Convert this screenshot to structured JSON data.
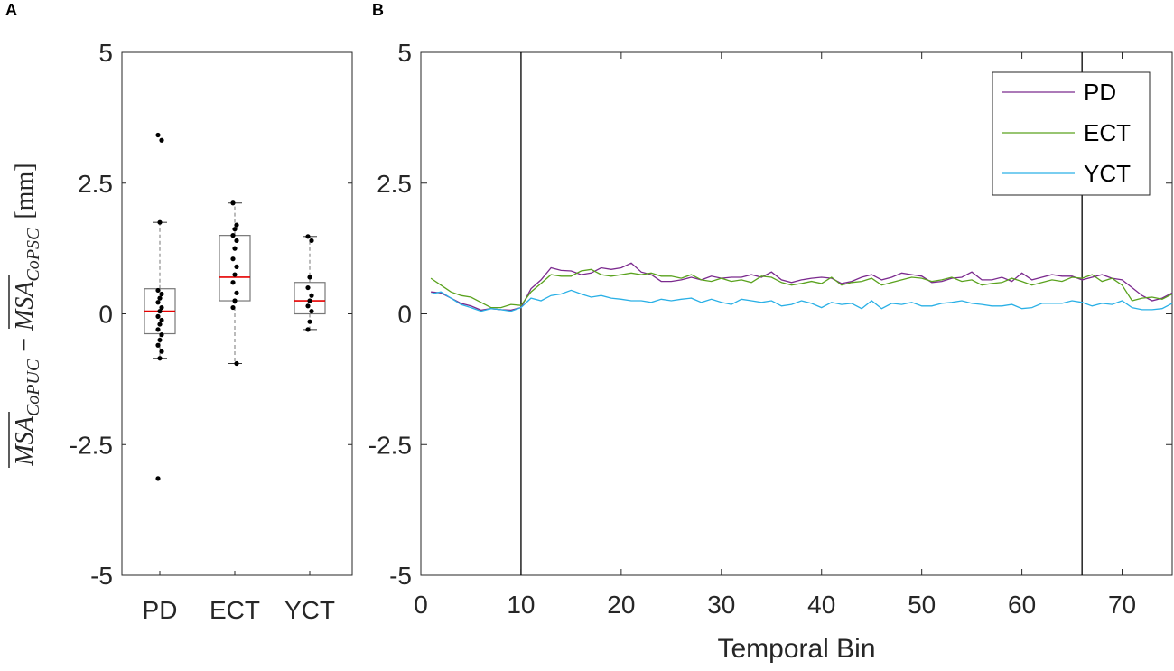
{
  "panels": {
    "a": "A",
    "b": "B"
  },
  "chart_data": [
    {
      "type": "box",
      "ylabel": "MSA_CoPUC − MSA_CoPSC [mm]",
      "ylabel_parts": {
        "lhs": "MSA",
        "lhs_sub": "CoPUC",
        "op": "−",
        "rhs": "MSA",
        "rhs_sub": "CoPSC",
        "unit": "[mm]"
      },
      "ylim": [
        -5,
        5
      ],
      "yticks": [
        -5,
        -2.5,
        0,
        2.5,
        5
      ],
      "ytick_labels": [
        "-5",
        "-2.5",
        "0",
        "2.5",
        "5"
      ],
      "categories": [
        "PD",
        "ECT",
        "YCT"
      ],
      "boxes": [
        {
          "name": "PD",
          "q1": -0.38,
          "median": 0.05,
          "q3": 0.48,
          "whisker_low": -0.85,
          "whisker_high": 1.75,
          "points": [
            3.42,
            3.32,
            1.75,
            0.45,
            0.38,
            0.3,
            0.22,
            0.12,
            0.05,
            -0.05,
            -0.12,
            -0.2,
            -0.3,
            -0.4,
            -0.5,
            -0.6,
            -0.72,
            -0.85,
            -3.15
          ]
        },
        {
          "name": "ECT",
          "q1": 0.25,
          "median": 0.7,
          "q3": 1.5,
          "whisker_low": -0.95,
          "whisker_high": 2.12,
          "points": [
            2.12,
            1.7,
            1.62,
            1.5,
            1.4,
            1.25,
            1.05,
            0.9,
            0.75,
            0.6,
            0.4,
            0.25,
            0.12,
            -0.95
          ]
        },
        {
          "name": "YCT",
          "q1": 0.0,
          "median": 0.25,
          "q3": 0.6,
          "whisker_low": -0.3,
          "whisker_high": 1.48,
          "points": [
            1.48,
            1.4,
            0.7,
            0.5,
            0.35,
            0.25,
            0.15,
            0.05,
            -0.15,
            -0.3
          ]
        }
      ],
      "colors": {
        "box": "#777777",
        "median": "#e60000",
        "points": "#000000"
      }
    },
    {
      "type": "line",
      "xlabel": "Temporal Bin",
      "xlim": [
        0,
        75
      ],
      "ylim": [
        -5,
        5
      ],
      "xticks": [
        0,
        10,
        20,
        30,
        40,
        50,
        60,
        70
      ],
      "yticks": [
        -5,
        -2.5,
        0,
        2.5,
        5
      ],
      "ytick_labels": [
        "-5",
        "-2.5",
        "0",
        "2.5",
        "5"
      ],
      "vlines": [
        10,
        66
      ],
      "legend_position": "top-right",
      "series": [
        {
          "name": "PD",
          "color": "#7b2a8e",
          "values": [
            0.42,
            0.4,
            0.3,
            0.2,
            0.15,
            0.07,
            0.1,
            0.08,
            0.07,
            0.12,
            0.48,
            0.65,
            0.88,
            0.83,
            0.82,
            0.75,
            0.78,
            0.88,
            0.85,
            0.88,
            0.97,
            0.8,
            0.75,
            0.62,
            0.62,
            0.65,
            0.7,
            0.65,
            0.72,
            0.68,
            0.7,
            0.7,
            0.75,
            0.7,
            0.8,
            0.65,
            0.6,
            0.65,
            0.68,
            0.7,
            0.68,
            0.58,
            0.62,
            0.7,
            0.75,
            0.65,
            0.7,
            0.78,
            0.75,
            0.72,
            0.6,
            0.62,
            0.68,
            0.7,
            0.8,
            0.65,
            0.65,
            0.7,
            0.62,
            0.78,
            0.65,
            0.7,
            0.75,
            0.72,
            0.72,
            0.65,
            0.7,
            0.75,
            0.68,
            0.65,
            0.5,
            0.35,
            0.25,
            0.3,
            0.4
          ]
        },
        {
          "name": "ECT",
          "color": "#5aa21e",
          "values": [
            0.68,
            0.55,
            0.42,
            0.35,
            0.32,
            0.22,
            0.12,
            0.12,
            0.18,
            0.16,
            0.42,
            0.58,
            0.75,
            0.72,
            0.72,
            0.82,
            0.85,
            0.75,
            0.72,
            0.75,
            0.78,
            0.75,
            0.78,
            0.72,
            0.72,
            0.68,
            0.75,
            0.65,
            0.62,
            0.68,
            0.62,
            0.65,
            0.6,
            0.72,
            0.7,
            0.6,
            0.55,
            0.58,
            0.62,
            0.58,
            0.7,
            0.55,
            0.6,
            0.62,
            0.68,
            0.55,
            0.6,
            0.65,
            0.7,
            0.68,
            0.62,
            0.65,
            0.7,
            0.62,
            0.65,
            0.55,
            0.58,
            0.6,
            0.68,
            0.62,
            0.55,
            0.6,
            0.65,
            0.62,
            0.7,
            0.68,
            0.75,
            0.62,
            0.68,
            0.55,
            0.25,
            0.3,
            0.32,
            0.28,
            0.38
          ]
        },
        {
          "name": "YCT",
          "color": "#2ab0e6",
          "values": [
            0.38,
            0.42,
            0.3,
            0.18,
            0.12,
            0.05,
            0.1,
            0.08,
            0.05,
            0.12,
            0.3,
            0.25,
            0.35,
            0.38,
            0.45,
            0.38,
            0.32,
            0.35,
            0.3,
            0.28,
            0.25,
            0.25,
            0.22,
            0.28,
            0.25,
            0.28,
            0.3,
            0.22,
            0.28,
            0.22,
            0.18,
            0.28,
            0.25,
            0.22,
            0.25,
            0.15,
            0.18,
            0.25,
            0.2,
            0.12,
            0.22,
            0.18,
            0.2,
            0.1,
            0.25,
            0.1,
            0.2,
            0.18,
            0.22,
            0.15,
            0.15,
            0.2,
            0.22,
            0.25,
            0.2,
            0.18,
            0.15,
            0.15,
            0.18,
            0.1,
            0.12,
            0.2,
            0.2,
            0.2,
            0.25,
            0.22,
            0.15,
            0.2,
            0.18,
            0.25,
            0.12,
            0.08,
            0.08,
            0.1,
            0.2
          ]
        }
      ]
    }
  ]
}
